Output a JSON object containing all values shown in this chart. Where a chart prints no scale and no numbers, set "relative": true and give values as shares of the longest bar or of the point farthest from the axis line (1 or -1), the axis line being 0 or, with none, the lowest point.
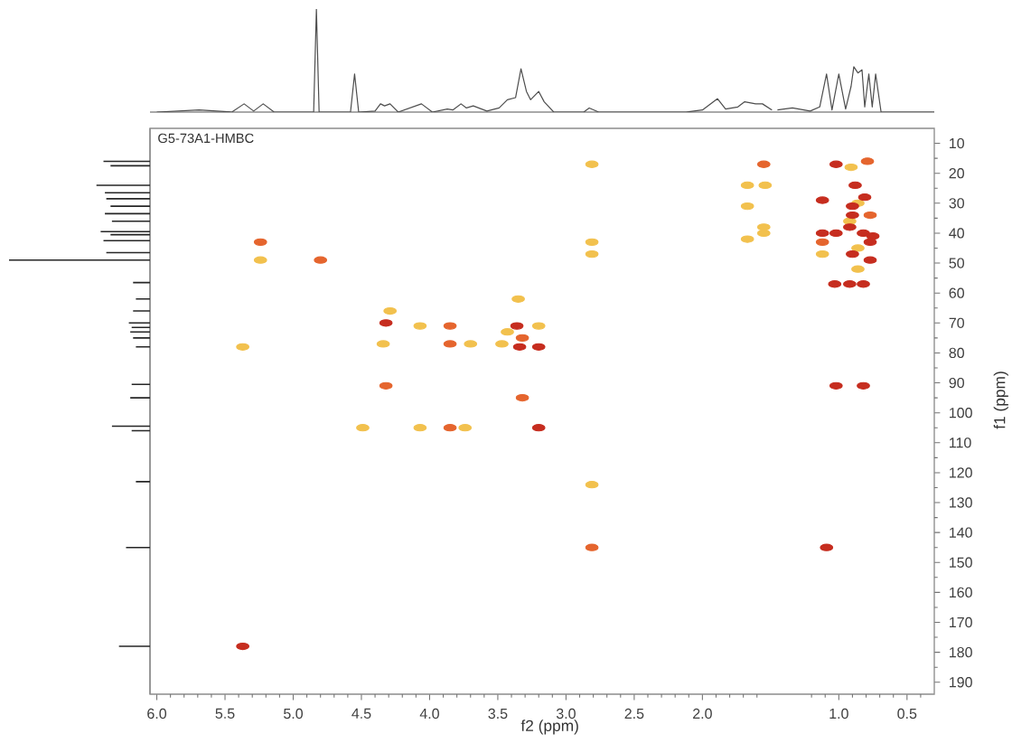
{
  "chart_data": [
    {
      "type": "scatter",
      "title": "G5-73A1-HMBC",
      "xlabel": "f2 (ppm)",
      "ylabel": "f1 (ppm)",
      "marker": "circle",
      "xlim": [
        6.05,
        0.3
      ],
      "ylim": [
        194,
        5
      ],
      "xticks": [
        {
          "value": 6,
          "label": "6.0"
        },
        5.5,
        {
          "value": 5,
          "label": "5.0"
        },
        4.5,
        {
          "value": 4,
          "label": "4.0"
        },
        3.5,
        {
          "value": 3,
          "label": "3.0"
        },
        2.5,
        {
          "value": 2,
          "label": "2.0"
        },
        {
          "value": 1,
          "label": "1.0"
        },
        0.5,
        {
          "value": 5.9,
          "label": null
        },
        {
          "value": 5.8,
          "label": null
        },
        {
          "value": 5.7,
          "label": null
        },
        {
          "value": 5.6,
          "label": null
        },
        {
          "value": 5.4,
          "label": null
        },
        {
          "value": 5.3,
          "label": null
        },
        {
          "value": 5.2,
          "label": null
        },
        {
          "value": 5.1,
          "label": null
        },
        {
          "value": 4.9,
          "label": null
        },
        {
          "value": 4.8,
          "label": null
        },
        {
          "value": 4.7,
          "label": null
        },
        {
          "value": 4.6,
          "label": null
        },
        {
          "value": 4.4,
          "label": null
        },
        {
          "value": 4.3,
          "label": null
        },
        {
          "value": 4.2,
          "label": null
        },
        {
          "value": 4.1,
          "label": null
        },
        {
          "value": 3.9,
          "label": null
        },
        {
          "value": 3.8,
          "label": null
        },
        {
          "value": 3.7,
          "label": null
        },
        {
          "value": 3.6,
          "label": null
        },
        {
          "value": 3.4,
          "label": null
        },
        {
          "value": 3.3,
          "label": null
        },
        {
          "value": 3.2,
          "label": null
        },
        {
          "value": 3.1,
          "label": null
        },
        {
          "value": 2.9,
          "label": null
        },
        {
          "value": 2.8,
          "label": null
        },
        {
          "value": 2.7,
          "label": null
        },
        {
          "value": 2.6,
          "label": null
        },
        {
          "value": 2.4,
          "label": null
        },
        {
          "value": 2.3,
          "label": null
        },
        {
          "value": 2.2,
          "label": null
        },
        {
          "value": 2.1,
          "label": null
        },
        {
          "value": 1.9,
          "label": null
        },
        {
          "value": 1.8,
          "label": null
        },
        {
          "value": 1.7,
          "label": null
        },
        {
          "value": 1.6,
          "label": null
        },
        {
          "value": 1.2,
          "label": null
        },
        {
          "value": 1.1,
          "label": null
        },
        {
          "value": 0.9,
          "label": null
        },
        {
          "value": 0.8,
          "label": null
        },
        {
          "value": 0.7,
          "label": null
        },
        {
          "value": 0.6,
          "label": null
        },
        {
          "value": 0.4,
          "label": null
        }
      ],
      "yticks": [
        10,
        20,
        30,
        40,
        50,
        60,
        70,
        80,
        90,
        100,
        110,
        120,
        130,
        140,
        150,
        160,
        170,
        180,
        190,
        {
          "value": 15,
          "label": null
        },
        {
          "value": 25,
          "label": null
        },
        {
          "value": 35,
          "label": null
        },
        {
          "value": 45,
          "label": null
        },
        {
          "value": 55,
          "label": null
        },
        {
          "value": 65,
          "label": null
        },
        {
          "value": 75,
          "label": null
        },
        {
          "value": 85,
          "label": null
        },
        {
          "value": 95,
          "label": null
        },
        {
          "value": 105,
          "label": null
        },
        {
          "value": 115,
          "label": null
        },
        {
          "value": 125,
          "label": null
        },
        {
          "value": 135,
          "label": null
        },
        {
          "value": 145,
          "label": null
        },
        {
          "value": 155,
          "label": null
        },
        {
          "value": 165,
          "label": null
        },
        {
          "value": 175,
          "label": null
        },
        {
          "value": 185,
          "label": null
        }
      ],
      "series": [
        {
          "color": "#f2c14e",
          "x": [
            4.07,
            3.2,
            4.29,
            4.34,
            3.7,
            3.47,
            3.43,
            4.49,
            4.07,
            3.74,
            3.35,
            5.24,
            5.37,
            2.81,
            2.81,
            2.81,
            2.81,
            1.67,
            1.54,
            1.67,
            1.55,
            1.55,
            1.67,
            0.91,
            1.12,
            0.86,
            0.86,
            0.86,
            0.92
          ],
          "values": [
            71,
            71,
            66,
            77,
            77,
            77,
            73,
            105,
            105,
            105,
            62,
            49,
            78,
            17,
            43,
            47,
            124,
            24,
            24,
            31,
            38,
            40,
            42,
            18,
            47,
            30,
            45,
            52,
            36
          ]
        },
        {
          "color": "#e5652e",
          "x": [
            3.85,
            3.85,
            3.32,
            4.32,
            3.32,
            3.85,
            5.24,
            4.8,
            2.81,
            1.55,
            0.79,
            0.77,
            1.12
          ],
          "values": [
            71,
            77,
            75,
            91,
            95,
            105,
            43,
            49,
            145,
            17,
            16,
            34,
            43
          ]
        },
        {
          "color": "#c62d1f",
          "x": [
            4.32,
            3.36,
            3.34,
            3.2,
            3.2,
            5.37,
            1.09,
            1.02,
            0.88,
            1.12,
            0.81,
            0.9,
            0.9,
            1.12,
            1.02,
            0.92,
            0.82,
            0.75,
            0.77,
            0.9,
            0.77,
            1.03,
            0.92,
            0.82,
            1.02,
            0.82
          ],
          "values": [
            70,
            71,
            78,
            78,
            105,
            178,
            145,
            17,
            24,
            29,
            28,
            31,
            34,
            40,
            40,
            38,
            40,
            41,
            43,
            47,
            49,
            57,
            57,
            57,
            91,
            91
          ]
        }
      ]
    },
    {
      "type": "line",
      "relative": true,
      "tick_labels": false,
      "xlim": [
        6.05,
        0.3
      ],
      "color": "#4d4d4d",
      "x": [
        6.0,
        5.69,
        5.56,
        5.45,
        5.36,
        5.29,
        5.22,
        5.14,
        4.85,
        4.83,
        4.81,
        4.58,
        4.55,
        4.52,
        4.4,
        4.36,
        4.33,
        4.29,
        4.23,
        4.06,
        3.98,
        3.87,
        3.83,
        3.77,
        3.73,
        3.68,
        3.58,
        3.49,
        3.43,
        3.37,
        3.33,
        3.29,
        3.26,
        3.2,
        3.16,
        3.09,
        2.87,
        2.83,
        2.76,
        2.12,
        2.0,
        1.89,
        1.83,
        1.74,
        1.69,
        1.61,
        1.56,
        1.49,
        1.48,
        1.45,
        1.34,
        1.21,
        1.14,
        1.09,
        1.05,
        1.0,
        0.95,
        0.91,
        0.89,
        0.86,
        0.83,
        0.81,
        0.78,
        0.755,
        0.73,
        0.69,
        0.3
      ],
      "values": [
        0,
        0.02,
        0.01,
        0,
        0.08,
        0.01,
        0.08,
        0,
        0,
        1,
        0,
        0,
        0.37,
        0,
        0.01,
        0.08,
        0.06,
        0.08,
        0,
        0.08,
        0,
        0.03,
        0.02,
        0.08,
        0.04,
        0.06,
        0.01,
        0.04,
        0.12,
        0.14,
        0.42,
        0.2,
        0.12,
        0.2,
        0.1,
        0,
        0,
        0.04,
        0,
        0,
        0.02,
        0.13,
        0.03,
        0.05,
        0.1,
        0.08,
        0.08,
        0.02,
        null,
        0.02,
        0.04,
        0.01,
        0.05,
        0.37,
        0.02,
        0.37,
        0.03,
        0.25,
        0.44,
        0.38,
        0.41,
        0.05,
        0.37,
        0.05,
        0.37,
        0,
        0
      ]
    },
    {
      "type": "bar",
      "orientation": "horizontal",
      "relative": true,
      "tick_labels": false,
      "ylim": [
        194,
        5
      ],
      "color": "#262626",
      "x": [
        16,
        17.5,
        24,
        26.5,
        28.5,
        31,
        33.5,
        36,
        39.5,
        40.5,
        42.5,
        46.5,
        49,
        56.5,
        62,
        66,
        70,
        71.5,
        73,
        75,
        78,
        90.5,
        95,
        104.5,
        106,
        123,
        145,
        178
      ],
      "values": [
        0.33,
        0.28,
        0.38,
        0.32,
        0.31,
        0.28,
        0.32,
        0.27,
        0.35,
        0.28,
        0.33,
        0.31,
        1,
        0.12,
        0.1,
        0.12,
        0.15,
        0.13,
        0.14,
        0.12,
        0.1,
        0.13,
        0.14,
        0.27,
        0.13,
        0.1,
        0.17,
        0.22
      ]
    }
  ]
}
